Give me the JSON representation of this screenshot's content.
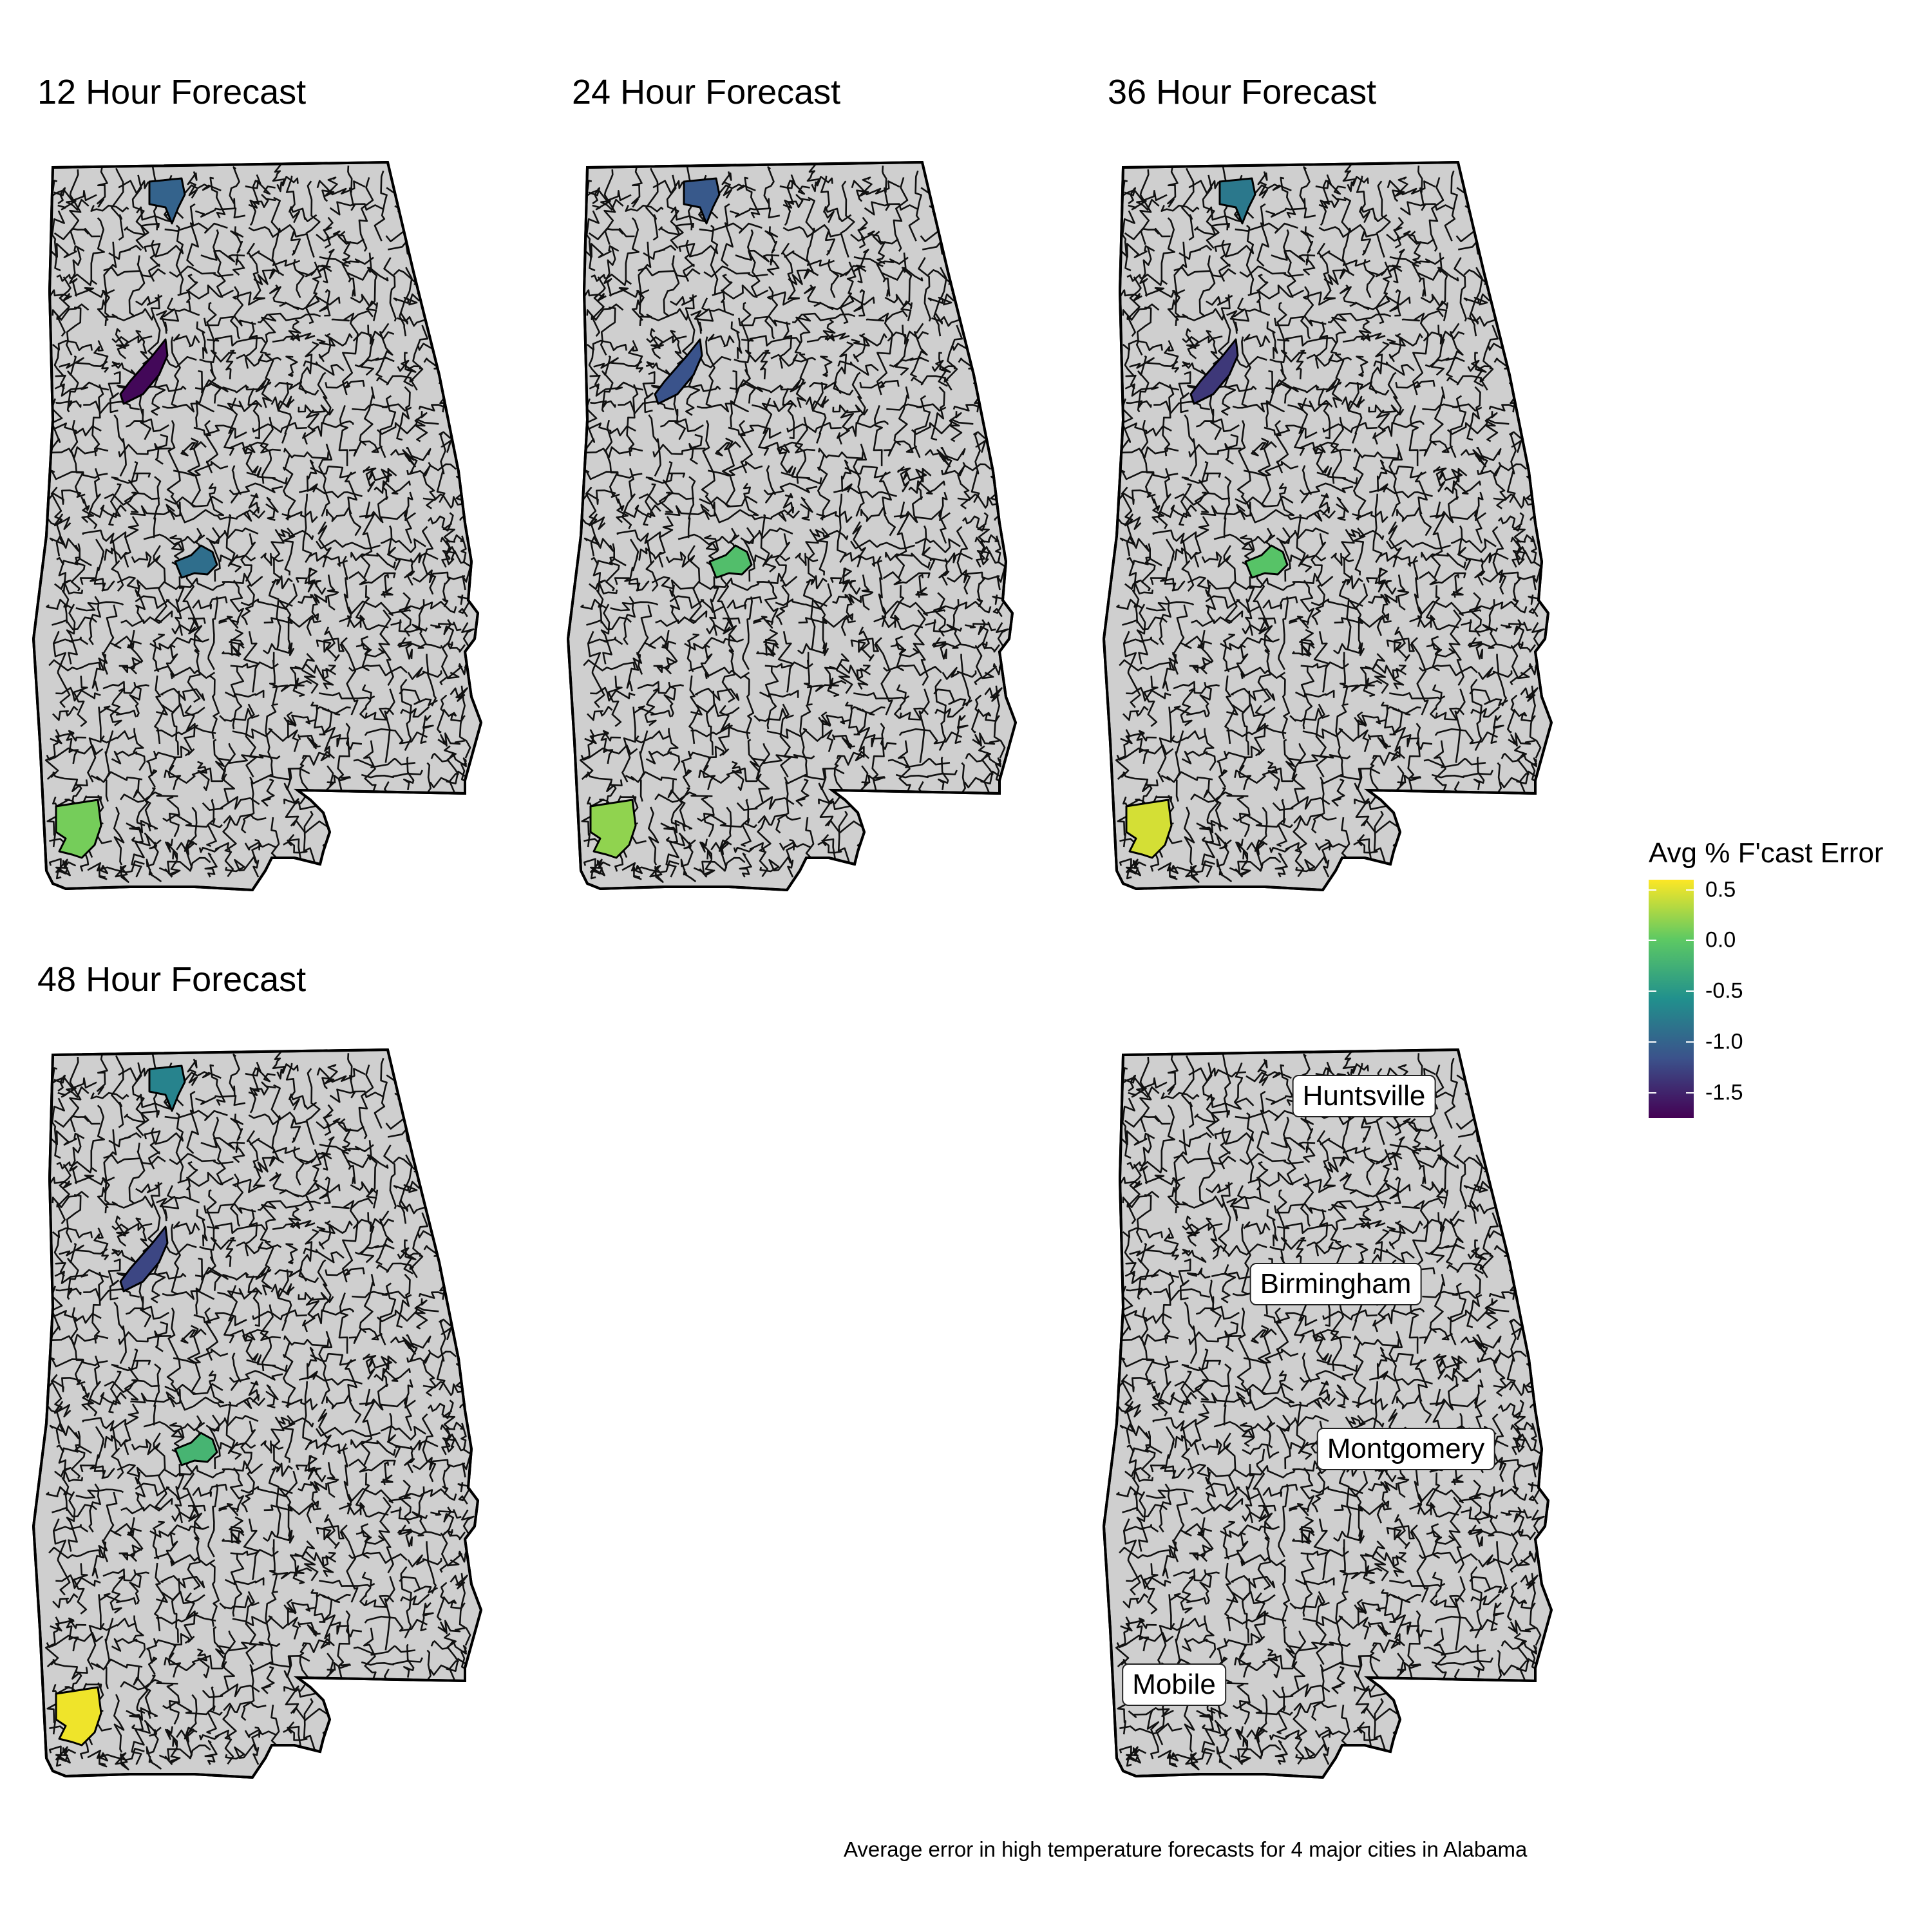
{
  "panels": [
    {
      "title": "12 Hour Forecast",
      "values": {
        "huntsville": -1.0,
        "birmingham": -1.7,
        "montgomery": -0.9,
        "mobile": 0.1
      }
    },
    {
      "title": "24 Hour Forecast",
      "values": {
        "huntsville": -1.1,
        "birmingham": -1.15,
        "montgomery": -0.1,
        "mobile": 0.2
      }
    },
    {
      "title": "36 Hour Forecast",
      "values": {
        "huntsville": -0.8,
        "birmingham": -1.35,
        "montgomery": -0.05,
        "mobile": 0.45
      }
    },
    {
      "title": "48 Hour Forecast",
      "values": {
        "huntsville": -0.7,
        "birmingham": -1.25,
        "montgomery": -0.2,
        "mobile": 0.55
      }
    }
  ],
  "label_map": {
    "labels": {
      "huntsville": "Huntsville",
      "birmingham": "Birmingham",
      "montgomery": "Montgomery",
      "mobile": "Mobile"
    }
  },
  "legend": {
    "title": "Avg % F'cast Error",
    "ticks": [
      "0.5",
      "0.0",
      "-0.5",
      "-1.0",
      "-1.5"
    ],
    "tick_values": [
      0.5,
      0.0,
      -0.5,
      -1.0,
      -1.5
    ],
    "min": -1.75,
    "max": 0.6,
    "palette": [
      "#440154",
      "#3b528b",
      "#21908d",
      "#5dc963",
      "#fde725"
    ]
  },
  "caption": "Average error in high temperature forecasts for 4 major cities in Alabama"
}
